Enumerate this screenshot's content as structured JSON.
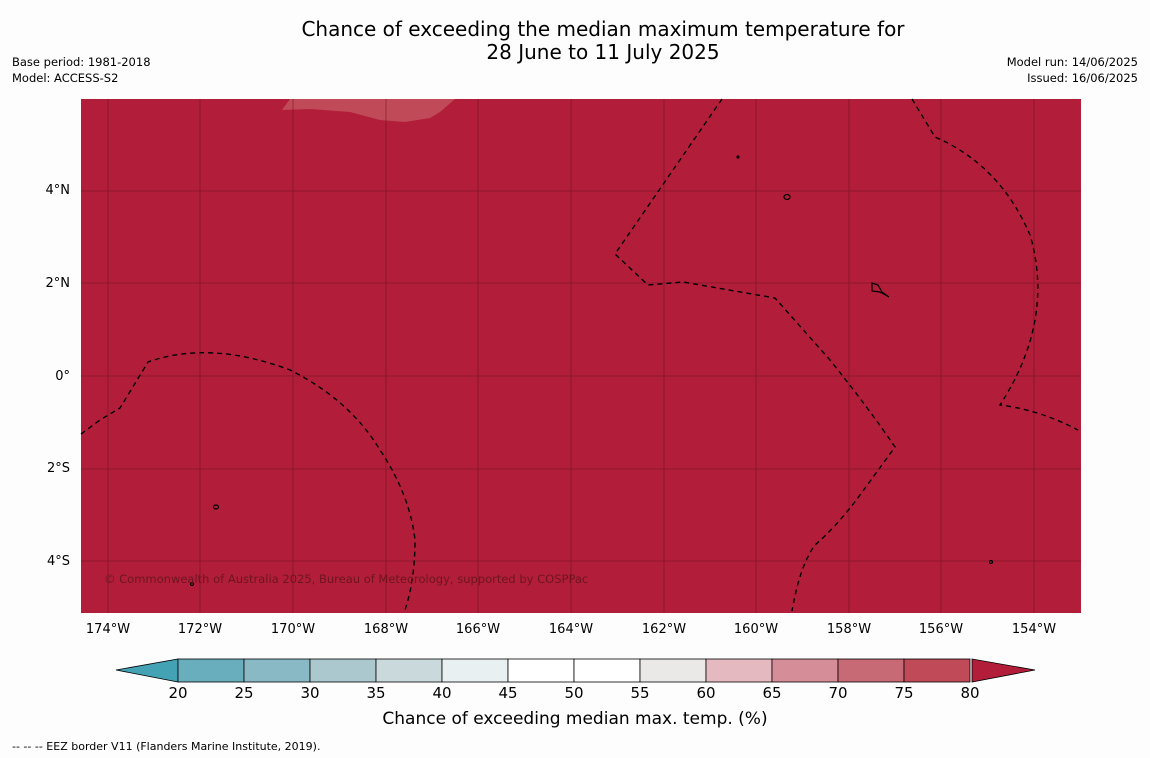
{
  "title": {
    "line1": "Chance of exceeding the median maximum temperature for",
    "line2": "28 June to 11 July 2025"
  },
  "meta_left": {
    "base_period": "Base period: 1981-2018",
    "model": "Model: ACCESS-S2"
  },
  "meta_right": {
    "model_run": "Model run: 14/06/2025",
    "issued": "Issued: 16/06/2025"
  },
  "map": {
    "fill_color": "#b21e3a",
    "lighter_patch_color": "#c04a57",
    "lat_labels": [
      "4°N",
      "2°N",
      "0°",
      "2°S",
      "4°S"
    ],
    "lon_labels": [
      "174°W",
      "172°W",
      "170°W",
      "168°W",
      "166°W",
      "164°W",
      "162°W",
      "160°W",
      "158°W",
      "156°W",
      "154°W"
    ],
    "credit": "© Commonwealth of Australia 2025, Bureau of Meteorology, supported by COSPPac"
  },
  "colorbar": {
    "ticks": [
      "20",
      "25",
      "30",
      "35",
      "40",
      "45",
      "50",
      "55",
      "60",
      "65",
      "70",
      "75",
      "80"
    ],
    "colors": [
      "#68aebd",
      "#8ab9c6",
      "#aac8ce",
      "#cad9dc",
      "#e8f0f1",
      "#ffffff",
      "#ffffff",
      "#ebe8e8",
      "#e4bac0",
      "#d58e98",
      "#c86a75",
      "#c04a57"
    ],
    "low_extend_color": "#43a2b3",
    "high_extend_color": "#b21e3a",
    "label": "Chance of exceeding median max. temp. (%)"
  },
  "legend_footnote": "--  --  -- EEZ border V11 (Flanders Marine Institute, 2019)."
}
